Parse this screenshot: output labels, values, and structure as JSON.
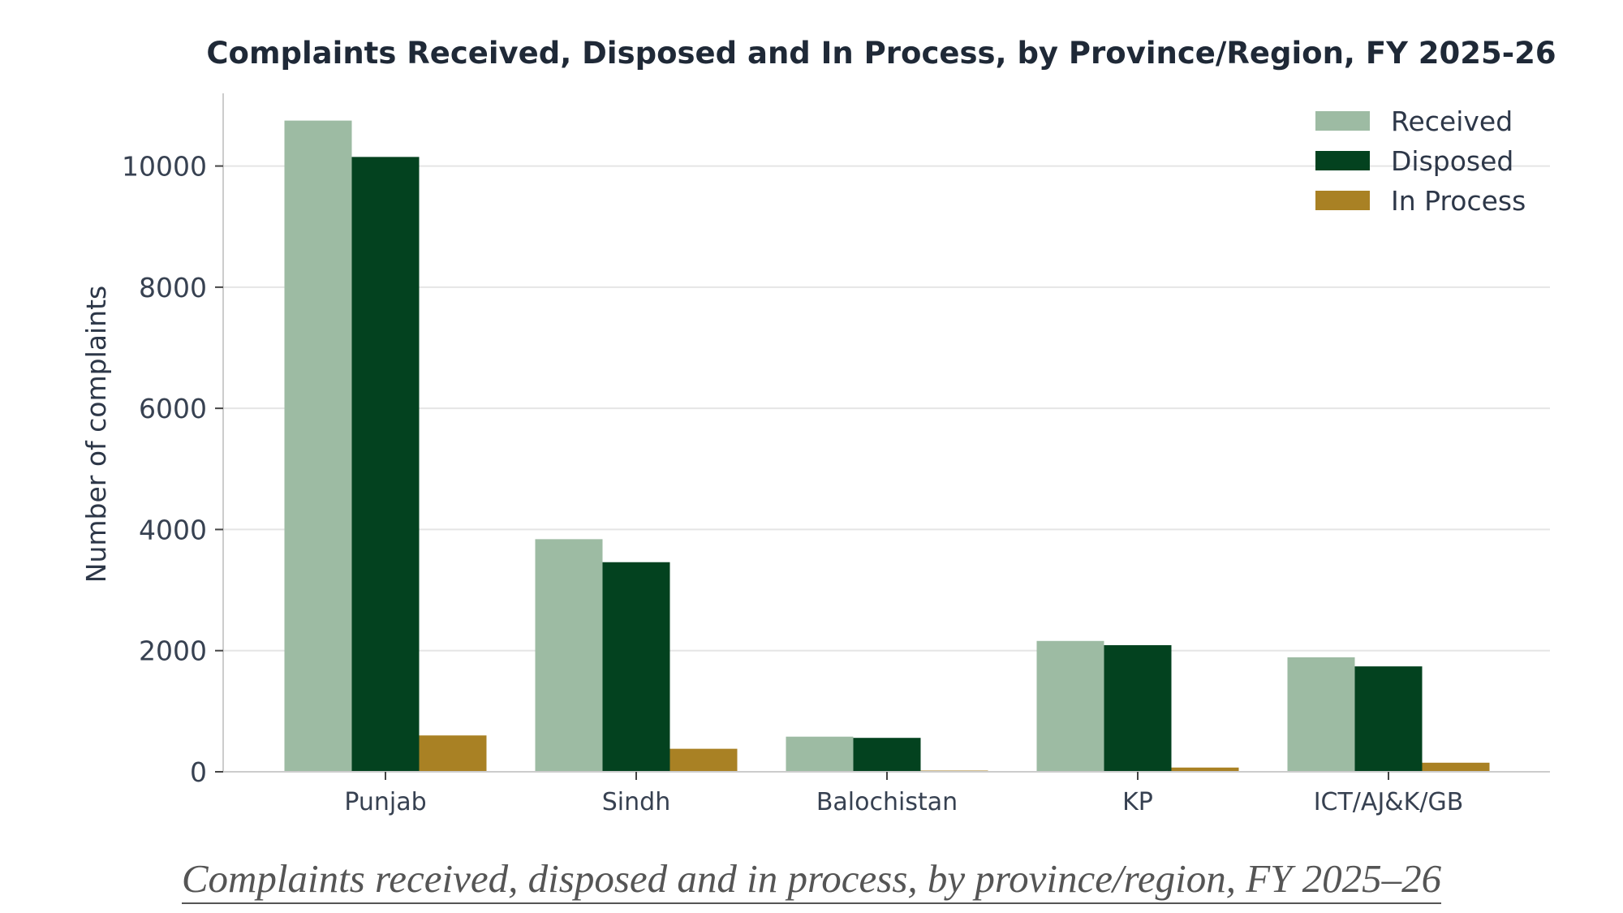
{
  "chart_data": {
    "type": "bar",
    "title": "Complaints Received, Disposed and In Process, by Province/Region, FY 2025-26",
    "xlabel": "",
    "ylabel": "Number of complaints",
    "categories": [
      "Punjab",
      "Sindh",
      "Balochistan",
      "KP",
      "ICT/AJ&K/GB"
    ],
    "series": [
      {
        "name": "Received",
        "color": "#9dbba3",
        "values": [
          10750,
          3840,
          580,
          2160,
          1890
        ]
      },
      {
        "name": "Disposed",
        "color": "#03421f",
        "values": [
          10150,
          3460,
          560,
          2090,
          1740
        ]
      },
      {
        "name": "In Process",
        "color": "#a98124",
        "values": [
          600,
          380,
          20,
          70,
          150
        ]
      }
    ],
    "ylim": [
      0,
      11200
    ],
    "yticks": [
      0,
      2000,
      4000,
      6000,
      8000,
      10000
    ],
    "grid": true,
    "legend_position": "top-right"
  },
  "caption": "Complaints received, disposed and in process, by province/region, FY 2025–26"
}
